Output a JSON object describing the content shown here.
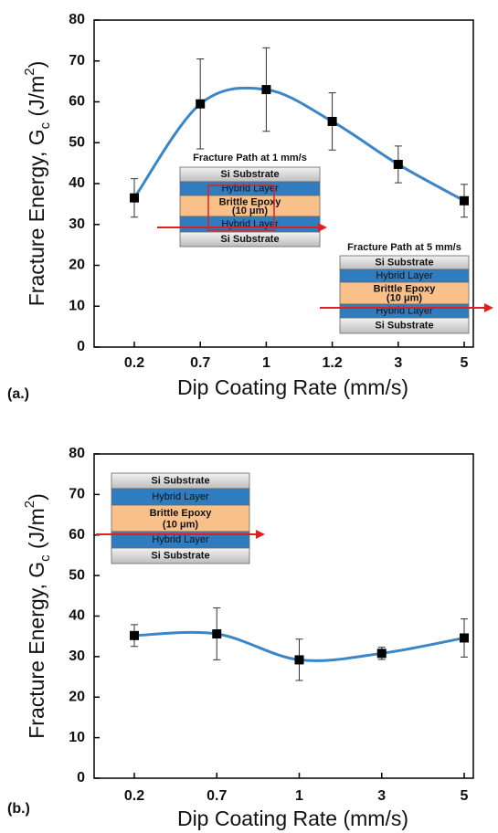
{
  "chart_data": [
    {
      "type": "line",
      "panel_label": "(a.)",
      "xlabel": "Dip Coating Rate (mm/s)",
      "ylabel": [
        "Fracture Energy, G",
        "c",
        " (J/m",
        "2",
        ")"
      ],
      "categories": [
        "0.2",
        "0.7",
        "1",
        "1.2",
        "3",
        "5"
      ],
      "values": [
        36.5,
        59.5,
        63,
        55.2,
        44.7,
        35.8
      ],
      "errors": [
        4.7,
        11,
        10.2,
        7,
        4.5,
        4
      ],
      "color": "#3a86c8",
      "ylim": [
        0,
        80
      ],
      "yticks": [
        0,
        10,
        20,
        30,
        40,
        50,
        60,
        70,
        80
      ],
      "insets": [
        {
          "title": "Fracture Path at 1 mm/s",
          "layers": [
            "Si Substrate",
            "Hybrid Layer",
            "Brittle Epoxy",
            "Hybrid Layer",
            "Si Substrate"
          ],
          "epoxy_note": "(10 μm)"
        },
        {
          "title": "Fracture Path at 5 mm/s",
          "layers": [
            "Si Substrate",
            "Hybrid Layer",
            "Brittle Epoxy",
            "Hybrid Layer",
            "Si Substrate"
          ],
          "epoxy_note": "(10 μm)"
        }
      ]
    },
    {
      "type": "line",
      "panel_label": "(b.)",
      "xlabel": "Dip Coating Rate (mm/s)",
      "ylabel": [
        "Fracture Energy, G",
        "c",
        " (J/m",
        "2",
        ")"
      ],
      "categories": [
        "0.2",
        "0.7",
        "1",
        "3",
        "5"
      ],
      "values": [
        35.2,
        35.6,
        29.2,
        30.8,
        34.6
      ],
      "errors": [
        2.7,
        6.4,
        5.1,
        1.5,
        4.7
      ],
      "color": "#3a86c8",
      "ylim": [
        0,
        80
      ],
      "yticks": [
        0,
        10,
        20,
        30,
        40,
        50,
        60,
        70,
        80
      ],
      "insets": [
        {
          "layers": [
            "Si Substrate",
            "Hybrid Layer",
            "Brittle Epoxy",
            "Hybrid Layer",
            "Si Substrate"
          ],
          "epoxy_note": "(10 μm)"
        }
      ]
    }
  ]
}
